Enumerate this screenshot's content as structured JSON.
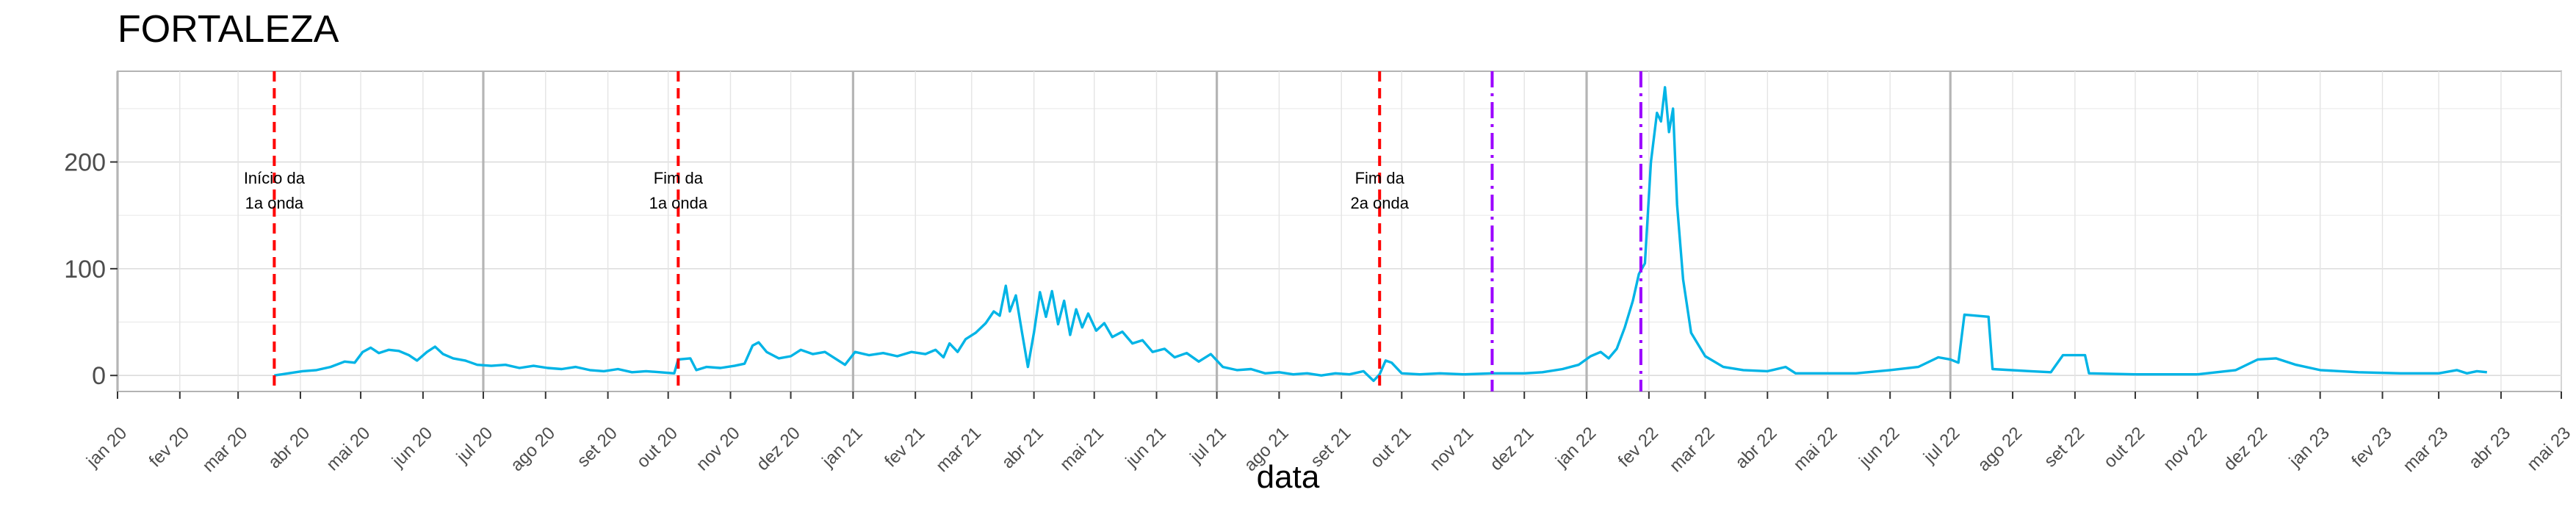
{
  "chart_data": {
    "type": "line",
    "title": "FORTALEZA",
    "xlabel": "data",
    "ylabel": "",
    "ylim": [
      -15,
      285
    ],
    "xlim": [
      "2020-01-01",
      "2023-05-01"
    ],
    "y_ticks": [
      0,
      100,
      200
    ],
    "x_ticks": [
      {
        "date": "2020-01-01",
        "label": "jan 20"
      },
      {
        "date": "2020-02-01",
        "label": "fev 20"
      },
      {
        "date": "2020-03-01",
        "label": "mar 20"
      },
      {
        "date": "2020-04-01",
        "label": "abr 20"
      },
      {
        "date": "2020-05-01",
        "label": "mai 20"
      },
      {
        "date": "2020-06-01",
        "label": "jun 20"
      },
      {
        "date": "2020-07-01",
        "label": "jul 20"
      },
      {
        "date": "2020-08-01",
        "label": "ago 20"
      },
      {
        "date": "2020-09-01",
        "label": "set 20"
      },
      {
        "date": "2020-10-01",
        "label": "out 20"
      },
      {
        "date": "2020-11-01",
        "label": "nov 20"
      },
      {
        "date": "2020-12-01",
        "label": "dez 20"
      },
      {
        "date": "2021-01-01",
        "label": "jan 21"
      },
      {
        "date": "2021-02-01",
        "label": "fev 21"
      },
      {
        "date": "2021-03-01",
        "label": "mar 21"
      },
      {
        "date": "2021-04-01",
        "label": "abr 21"
      },
      {
        "date": "2021-05-01",
        "label": "mai 21"
      },
      {
        "date": "2021-06-01",
        "label": "jun 21"
      },
      {
        "date": "2021-07-01",
        "label": "jul 21"
      },
      {
        "date": "2021-08-01",
        "label": "ago 21"
      },
      {
        "date": "2021-09-01",
        "label": "set 21"
      },
      {
        "date": "2021-10-01",
        "label": "out 21"
      },
      {
        "date": "2021-11-01",
        "label": "nov 21"
      },
      {
        "date": "2021-12-01",
        "label": "dez 21"
      },
      {
        "date": "2022-01-01",
        "label": "jan 22"
      },
      {
        "date": "2022-02-01",
        "label": "fev 22"
      },
      {
        "date": "2022-03-01",
        "label": "mar 22"
      },
      {
        "date": "2022-04-01",
        "label": "abr 22"
      },
      {
        "date": "2022-05-01",
        "label": "mai 22"
      },
      {
        "date": "2022-06-01",
        "label": "jun 22"
      },
      {
        "date": "2022-07-01",
        "label": "jul 22"
      },
      {
        "date": "2022-08-01",
        "label": "ago 22"
      },
      {
        "date": "2022-09-01",
        "label": "set 22"
      },
      {
        "date": "2022-10-01",
        "label": "out 22"
      },
      {
        "date": "2022-11-01",
        "label": "nov 22"
      },
      {
        "date": "2022-12-01",
        "label": "dez 22"
      },
      {
        "date": "2023-01-01",
        "label": "jan 23"
      },
      {
        "date": "2023-02-01",
        "label": "fev 23"
      },
      {
        "date": "2023-03-01",
        "label": "mar 23"
      },
      {
        "date": "2023-04-01",
        "label": "abr 23"
      },
      {
        "date": "2023-05-01",
        "label": "mai 23"
      }
    ],
    "grid": true,
    "gray_vlines": [
      "2020-01-01",
      "2020-07-01",
      "2021-01-01",
      "2021-07-01",
      "2022-01-01",
      "2022-07-01"
    ],
    "annotations": [
      {
        "date": "2020-03-19",
        "color": "#ff0000",
        "style": "dashed",
        "text": [
          "Início da",
          "1a onda"
        ]
      },
      {
        "date": "2020-10-06",
        "color": "#ff0000",
        "style": "dashed",
        "text": [
          "Fim da",
          "1a onda"
        ]
      },
      {
        "date": "2021-09-20",
        "color": "#ff0000",
        "style": "dashed",
        "text": [
          "Fim da",
          "2a onda"
        ]
      },
      {
        "date": "2021-11-15",
        "color": "#9b00ff",
        "style": "dotdash",
        "text": []
      },
      {
        "date": "2022-01-28",
        "color": "#9b00ff",
        "style": "dotdash",
        "text": []
      }
    ],
    "series": [
      {
        "color": "#00b4e6",
        "points": [
          [
            "2020-03-19",
            0
          ],
          [
            "2020-03-26",
            2
          ],
          [
            "2020-04-02",
            4
          ],
          [
            "2020-04-09",
            5
          ],
          [
            "2020-04-16",
            8
          ],
          [
            "2020-04-23",
            13
          ],
          [
            "2020-04-28",
            12
          ],
          [
            "2020-05-02",
            22
          ],
          [
            "2020-05-06",
            26
          ],
          [
            "2020-05-10",
            21
          ],
          [
            "2020-05-15",
            24
          ],
          [
            "2020-05-20",
            23
          ],
          [
            "2020-05-25",
            19
          ],
          [
            "2020-05-29",
            14
          ],
          [
            "2020-06-03",
            22
          ],
          [
            "2020-06-07",
            27
          ],
          [
            "2020-06-11",
            20
          ],
          [
            "2020-06-16",
            16
          ],
          [
            "2020-06-22",
            14
          ],
          [
            "2020-06-28",
            10
          ],
          [
            "2020-07-05",
            9
          ],
          [
            "2020-07-12",
            10
          ],
          [
            "2020-07-19",
            7
          ],
          [
            "2020-07-26",
            9
          ],
          [
            "2020-08-02",
            7
          ],
          [
            "2020-08-09",
            6
          ],
          [
            "2020-08-16",
            8
          ],
          [
            "2020-08-23",
            5
          ],
          [
            "2020-08-30",
            4
          ],
          [
            "2020-09-06",
            6
          ],
          [
            "2020-09-13",
            3
          ],
          [
            "2020-09-20",
            4
          ],
          [
            "2020-09-27",
            3
          ],
          [
            "2020-10-04",
            2
          ],
          [
            "2020-10-06",
            15
          ],
          [
            "2020-10-12",
            16
          ],
          [
            "2020-10-15",
            5
          ],
          [
            "2020-10-20",
            8
          ],
          [
            "2020-10-27",
            7
          ],
          [
            "2020-11-03",
            9
          ],
          [
            "2020-11-08",
            11
          ],
          [
            "2020-11-12",
            28
          ],
          [
            "2020-11-15",
            31
          ],
          [
            "2020-11-19",
            22
          ],
          [
            "2020-11-25",
            16
          ],
          [
            "2020-12-01",
            18
          ],
          [
            "2020-12-06",
            24
          ],
          [
            "2020-12-12",
            20
          ],
          [
            "2020-12-18",
            22
          ],
          [
            "2020-12-23",
            16
          ],
          [
            "2020-12-28",
            10
          ],
          [
            "2021-01-02",
            22
          ],
          [
            "2021-01-09",
            19
          ],
          [
            "2021-01-16",
            21
          ],
          [
            "2021-01-23",
            18
          ],
          [
            "2021-01-30",
            22
          ],
          [
            "2021-02-06",
            20
          ],
          [
            "2021-02-11",
            24
          ],
          [
            "2021-02-15",
            17
          ],
          [
            "2021-02-18",
            30
          ],
          [
            "2021-02-22",
            22
          ],
          [
            "2021-02-26",
            34
          ],
          [
            "2021-03-03",
            40
          ],
          [
            "2021-03-08",
            49
          ],
          [
            "2021-03-12",
            60
          ],
          [
            "2021-03-15",
            56
          ],
          [
            "2021-03-18",
            84
          ],
          [
            "2021-03-20",
            60
          ],
          [
            "2021-03-23",
            75
          ],
          [
            "2021-03-26",
            41
          ],
          [
            "2021-03-29",
            8
          ],
          [
            "2021-04-01",
            40
          ],
          [
            "2021-04-04",
            78
          ],
          [
            "2021-04-07",
            55
          ],
          [
            "2021-04-10",
            79
          ],
          [
            "2021-04-13",
            48
          ],
          [
            "2021-04-16",
            70
          ],
          [
            "2021-04-19",
            38
          ],
          [
            "2021-04-22",
            62
          ],
          [
            "2021-04-25",
            45
          ],
          [
            "2021-04-28",
            58
          ],
          [
            "2021-05-02",
            42
          ],
          [
            "2021-05-06",
            49
          ],
          [
            "2021-05-10",
            36
          ],
          [
            "2021-05-15",
            41
          ],
          [
            "2021-05-20",
            30
          ],
          [
            "2021-05-25",
            33
          ],
          [
            "2021-05-30",
            22
          ],
          [
            "2021-06-05",
            25
          ],
          [
            "2021-06-10",
            17
          ],
          [
            "2021-06-16",
            21
          ],
          [
            "2021-06-22",
            13
          ],
          [
            "2021-06-28",
            20
          ],
          [
            "2021-07-04",
            8
          ],
          [
            "2021-07-11",
            5
          ],
          [
            "2021-07-18",
            6
          ],
          [
            "2021-07-25",
            2
          ],
          [
            "2021-08-01",
            3
          ],
          [
            "2021-08-08",
            1
          ],
          [
            "2021-08-15",
            2
          ],
          [
            "2021-08-22",
            0
          ],
          [
            "2021-08-29",
            2
          ],
          [
            "2021-09-05",
            1
          ],
          [
            "2021-09-12",
            4
          ],
          [
            "2021-09-17",
            -5
          ],
          [
            "2021-09-20",
            1
          ],
          [
            "2021-09-23",
            14
          ],
          [
            "2021-09-26",
            12
          ],
          [
            "2021-10-01",
            2
          ],
          [
            "2021-10-10",
            1
          ],
          [
            "2021-10-20",
            2
          ],
          [
            "2021-11-01",
            1
          ],
          [
            "2021-11-15",
            2
          ],
          [
            "2021-12-01",
            2
          ],
          [
            "2021-12-10",
            3
          ],
          [
            "2021-12-20",
            6
          ],
          [
            "2021-12-28",
            10
          ],
          [
            "2022-01-03",
            18
          ],
          [
            "2022-01-08",
            22
          ],
          [
            "2022-01-12",
            16
          ],
          [
            "2022-01-16",
            25
          ],
          [
            "2022-01-20",
            45
          ],
          [
            "2022-01-24",
            70
          ],
          [
            "2022-01-27",
            95
          ],
          [
            "2022-01-30",
            105
          ],
          [
            "2022-02-02",
            200
          ],
          [
            "2022-02-05",
            246
          ],
          [
            "2022-02-07",
            238
          ],
          [
            "2022-02-09",
            270
          ],
          [
            "2022-02-11",
            228
          ],
          [
            "2022-02-13",
            250
          ],
          [
            "2022-02-15",
            160
          ],
          [
            "2022-02-18",
            90
          ],
          [
            "2022-02-22",
            40
          ],
          [
            "2022-03-01",
            18
          ],
          [
            "2022-03-10",
            8
          ],
          [
            "2022-03-20",
            5
          ],
          [
            "2022-04-01",
            4
          ],
          [
            "2022-04-10",
            8
          ],
          [
            "2022-04-15",
            2
          ],
          [
            "2022-05-01",
            2
          ],
          [
            "2022-05-15",
            2
          ],
          [
            "2022-06-01",
            5
          ],
          [
            "2022-06-15",
            8
          ],
          [
            "2022-06-25",
            17
          ],
          [
            "2022-07-01",
            15
          ],
          [
            "2022-07-05",
            12
          ],
          [
            "2022-07-08",
            57
          ],
          [
            "2022-07-20",
            55
          ],
          [
            "2022-07-22",
            6
          ],
          [
            "2022-08-10",
            4
          ],
          [
            "2022-08-20",
            3
          ],
          [
            "2022-08-26",
            19
          ],
          [
            "2022-09-06",
            19
          ],
          [
            "2022-09-08",
            2
          ],
          [
            "2022-10-01",
            1
          ],
          [
            "2022-11-01",
            1
          ],
          [
            "2022-11-20",
            5
          ],
          [
            "2022-12-01",
            15
          ],
          [
            "2022-12-10",
            16
          ],
          [
            "2022-12-20",
            10
          ],
          [
            "2023-01-01",
            5
          ],
          [
            "2023-01-20",
            3
          ],
          [
            "2023-02-10",
            2
          ],
          [
            "2023-03-01",
            2
          ],
          [
            "2023-03-10",
            5
          ],
          [
            "2023-03-15",
            2
          ],
          [
            "2023-03-20",
            4
          ],
          [
            "2023-03-25",
            3
          ]
        ]
      }
    ]
  }
}
